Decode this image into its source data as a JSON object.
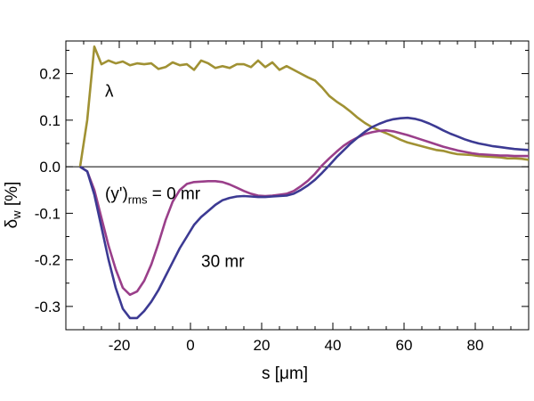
{
  "chart_data": {
    "type": "line",
    "title": "",
    "xlabel": "s [μm]",
    "ylabel": "δw [%]",
    "xlim": [
      -35,
      95
    ],
    "ylim": [
      -0.35,
      0.27
    ],
    "xticks": [
      -20,
      0,
      20,
      40,
      60,
      80
    ],
    "xtick_labels": [
      "-20",
      "0",
      "20",
      "40",
      "60",
      "80"
    ],
    "yticks": [
      -0.3,
      -0.2,
      -0.1,
      0.0,
      0.1,
      0.2
    ],
    "ytick_labels": [
      "-0.3",
      "-0.2",
      "-0.1",
      "0.0",
      "0.1",
      "0.2"
    ],
    "grid": false,
    "zero_line": true,
    "series": [
      {
        "name": "λ",
        "color": "#a09133",
        "x": [
          -31,
          -29,
          -27,
          -25,
          -23,
          -21,
          -19,
          -17,
          -15,
          -13,
          -11,
          -9,
          -7,
          -5,
          -3,
          -1,
          1,
          3,
          5,
          7,
          9,
          11,
          13,
          15,
          17,
          19,
          21,
          23,
          25,
          27,
          29,
          31,
          33,
          35,
          37,
          39,
          41,
          43,
          45,
          47,
          49,
          51,
          53,
          55,
          57,
          59,
          61,
          63,
          65,
          67,
          69,
          71,
          73,
          75,
          77,
          79,
          81,
          83,
          85,
          87,
          89,
          91,
          93,
          95
        ],
        "y": [
          0.0,
          0.1,
          0.258,
          0.22,
          0.228,
          0.222,
          0.226,
          0.218,
          0.222,
          0.22,
          0.222,
          0.21,
          0.214,
          0.224,
          0.218,
          0.22,
          0.208,
          0.228,
          0.222,
          0.212,
          0.216,
          0.212,
          0.22,
          0.22,
          0.214,
          0.228,
          0.214,
          0.224,
          0.208,
          0.216,
          0.208,
          0.2,
          0.192,
          0.185,
          0.17,
          0.152,
          0.14,
          0.13,
          0.118,
          0.105,
          0.094,
          0.085,
          0.078,
          0.072,
          0.065,
          0.058,
          0.052,
          0.048,
          0.044,
          0.04,
          0.036,
          0.034,
          0.03,
          0.027,
          0.026,
          0.025,
          0.023,
          0.022,
          0.021,
          0.02,
          0.018,
          0.018,
          0.017,
          0.015
        ]
      },
      {
        "name": "(y')rms = 0 mr",
        "color": "#9a3f8a",
        "x": [
          -31,
          -29,
          -27,
          -25,
          -23,
          -21,
          -19,
          -17,
          -15,
          -13,
          -11,
          -9,
          -7,
          -5,
          -3,
          -1,
          1,
          3,
          5,
          7,
          9,
          11,
          13,
          15,
          17,
          19,
          21,
          23,
          25,
          27,
          29,
          31,
          33,
          35,
          37,
          39,
          41,
          43,
          45,
          47,
          49,
          51,
          53,
          55,
          57,
          59,
          61,
          63,
          65,
          67,
          69,
          71,
          73,
          75,
          77,
          79,
          81,
          83,
          85,
          87,
          89,
          91,
          93,
          95
        ],
        "y": [
          0.0,
          -0.01,
          -0.05,
          -0.11,
          -0.17,
          -0.22,
          -0.26,
          -0.275,
          -0.268,
          -0.245,
          -0.21,
          -0.165,
          -0.115,
          -0.075,
          -0.05,
          -0.037,
          -0.033,
          -0.032,
          -0.031,
          -0.031,
          -0.033,
          -0.038,
          -0.045,
          -0.052,
          -0.058,
          -0.062,
          -0.063,
          -0.062,
          -0.06,
          -0.058,
          -0.052,
          -0.042,
          -0.03,
          -0.015,
          0.003,
          0.018,
          0.032,
          0.045,
          0.055,
          0.063,
          0.07,
          0.074,
          0.077,
          0.078,
          0.076,
          0.072,
          0.068,
          0.063,
          0.058,
          0.053,
          0.048,
          0.043,
          0.039,
          0.035,
          0.032,
          0.029,
          0.027,
          0.026,
          0.025,
          0.024,
          0.024,
          0.023,
          0.023,
          0.023
        ]
      },
      {
        "name": "30 mr",
        "color": "#3c3a93",
        "x": [
          -31,
          -29,
          -27,
          -25,
          -23,
          -21,
          -19,
          -17,
          -15,
          -13,
          -11,
          -9,
          -7,
          -5,
          -3,
          -1,
          1,
          3,
          5,
          7,
          9,
          11,
          13,
          15,
          17,
          19,
          21,
          23,
          25,
          27,
          29,
          31,
          33,
          35,
          37,
          39,
          41,
          43,
          45,
          47,
          49,
          51,
          53,
          55,
          57,
          59,
          61,
          63,
          65,
          67,
          69,
          71,
          73,
          75,
          77,
          79,
          81,
          83,
          85,
          87,
          89,
          91,
          93,
          95
        ],
        "y": [
          0.0,
          -0.01,
          -0.06,
          -0.13,
          -0.2,
          -0.26,
          -0.305,
          -0.325,
          -0.325,
          -0.31,
          -0.29,
          -0.265,
          -0.235,
          -0.205,
          -0.175,
          -0.15,
          -0.125,
          -0.108,
          -0.095,
          -0.082,
          -0.072,
          -0.067,
          -0.064,
          -0.063,
          -0.064,
          -0.065,
          -0.065,
          -0.064,
          -0.063,
          -0.062,
          -0.058,
          -0.05,
          -0.04,
          -0.028,
          -0.013,
          0.003,
          0.02,
          0.035,
          0.05,
          0.063,
          0.075,
          0.085,
          0.092,
          0.098,
          0.102,
          0.104,
          0.105,
          0.103,
          0.099,
          0.093,
          0.086,
          0.078,
          0.071,
          0.065,
          0.059,
          0.054,
          0.05,
          0.047,
          0.044,
          0.042,
          0.04,
          0.038,
          0.037,
          0.036
        ]
      }
    ],
    "annotations": [
      {
        "text": "λ",
        "x": -24,
        "y": 0.15
      },
      {
        "text_main": "(y')",
        "text_sub": "rms",
        "text_tail": " = 0 mr",
        "x": -24,
        "y": -0.07
      },
      {
        "text": "30 mr",
        "x": 3,
        "y": -0.215
      }
    ],
    "ylabel_main": "δ",
    "ylabel_sub": "w",
    "ylabel_tail": " [%]"
  }
}
